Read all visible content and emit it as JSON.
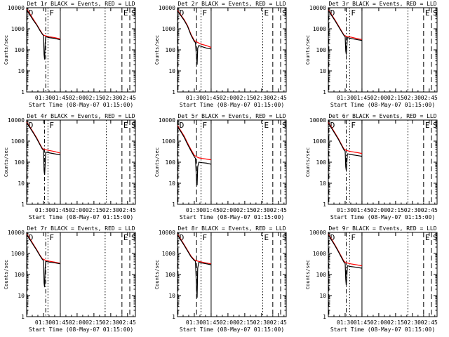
{
  "figure": {
    "x_axis_title": "Start Time (08-May-07 01:15:00)",
    "y_axis_title": "Counts/sec",
    "x_tick_labels": [
      "01:30",
      "01:45",
      "02:00",
      "02:15",
      "02:30",
      "02:45"
    ],
    "y_tick_labels": [
      "1",
      "10",
      "100",
      "1000",
      "10000"
    ]
  },
  "chart_data": [
    {
      "type": "line",
      "title": "Det 1r BLACK = Events, RED = LLD",
      "xlabel": "Start Time (08-May-07 01:15:00)",
      "ylabel": "Counts/sec",
      "x_unit": "minutes after 01:15:00",
      "xlim": [
        0,
        97
      ],
      "ylim": [
        1,
        10000
      ],
      "yscale": "log",
      "series": [
        {
          "name": "Events",
          "color": "#000000",
          "x": [
            0,
            3,
            6,
            9,
            12,
            14,
            15,
            15.5,
            16,
            16.5,
            17,
            20,
            25,
            30
          ],
          "y": [
            8000,
            4500,
            2500,
            1500,
            800,
            550,
            480,
            60,
            35,
            200,
            420,
            380,
            350,
            300
          ]
        },
        {
          "name": "LLD",
          "color": "#ff0000",
          "x": [
            0,
            3,
            6,
            9,
            12,
            14,
            15,
            16,
            17,
            20,
            25,
            30
          ],
          "y": [
            8500,
            5000,
            2800,
            1600,
            850,
            580,
            500,
            480,
            460,
            420,
            380,
            330
          ]
        }
      ],
      "markers": [
        {
          "x": 0.5,
          "label": "D",
          "style": "dashed"
        },
        {
          "x": 17,
          "label": "",
          "style": "dashdot"
        },
        {
          "x": 19,
          "label": "F",
          "style": "dotted"
        },
        {
          "x": 30,
          "label": "",
          "style": "solid"
        },
        {
          "x": 70,
          "label": "",
          "style": "dotted"
        },
        {
          "x": 85,
          "label": "E",
          "style": "dashed"
        },
        {
          "x": 92,
          "label": "S",
          "style": "dashed"
        }
      ]
    },
    {
      "type": "line",
      "title": "Det 2r BLACK = Events, RED = LLD",
      "xlabel": "Start Time (08-May-07 01:15:00)",
      "ylabel": "Counts/sec",
      "x_unit": "minutes after 01:15:00",
      "xlim": [
        0,
        97
      ],
      "ylim": [
        1,
        10000
      ],
      "yscale": "log",
      "series": [
        {
          "name": "Events",
          "color": "#000000",
          "x": [
            0,
            3,
            6,
            9,
            12,
            15,
            16,
            17,
            17.5,
            18,
            19,
            22,
            26,
            30
          ],
          "y": [
            7000,
            4200,
            2500,
            1300,
            500,
            250,
            220,
            40,
            20,
            120,
            160,
            140,
            120,
            110
          ]
        },
        {
          "name": "LLD",
          "color": "#ff0000",
          "x": [
            0,
            3,
            6,
            9,
            12,
            15,
            17,
            19,
            22,
            26,
            30
          ],
          "y": [
            7500,
            4500,
            2700,
            1400,
            550,
            280,
            240,
            210,
            180,
            160,
            130
          ]
        }
      ],
      "markers": [
        {
          "x": 0.5,
          "label": "D",
          "style": "dashed"
        },
        {
          "x": 17,
          "label": "",
          "style": "dashed"
        },
        {
          "x": 21,
          "label": "F",
          "style": "dotted"
        },
        {
          "x": 30,
          "label": "",
          "style": "solid"
        },
        {
          "x": 76,
          "label": "E",
          "style": "dotted"
        },
        {
          "x": 85,
          "label": "",
          "style": "dashed"
        },
        {
          "x": 92,
          "label": "S",
          "style": "dashed"
        }
      ]
    },
    {
      "type": "line",
      "title": "Det 3r BLACK = Events, RED = LLD",
      "xlabel": "Start Time (08-May-07 01:15:00)",
      "ylabel": "Counts/sec",
      "x_unit": "minutes after 01:15:00",
      "xlim": [
        0,
        97
      ],
      "ylim": [
        1,
        10000
      ],
      "yscale": "log",
      "series": [
        {
          "name": "Events",
          "color": "#000000",
          "x": [
            0,
            3,
            6,
            9,
            12,
            14,
            15,
            15.5,
            16,
            17,
            20,
            25,
            30
          ],
          "y": [
            7500,
            4200,
            2400,
            1300,
            700,
            480,
            420,
            90,
            60,
            380,
            350,
            310,
            280
          ]
        },
        {
          "name": "LLD",
          "color": "#ff0000",
          "x": [
            0,
            3,
            6,
            9,
            12,
            14,
            16,
            20,
            25,
            30
          ],
          "y": [
            8000,
            4600,
            2600,
            1400,
            750,
            500,
            440,
            400,
            350,
            310
          ]
        }
      ],
      "markers": [
        {
          "x": 0.5,
          "label": "D",
          "style": "dashed"
        },
        {
          "x": 16,
          "label": "",
          "style": "dashdot"
        },
        {
          "x": 19,
          "label": "F",
          "style": "dotted"
        },
        {
          "x": 30,
          "label": "",
          "style": "solid"
        },
        {
          "x": 71,
          "label": "",
          "style": "dotted"
        },
        {
          "x": 85,
          "label": "E",
          "style": "dashed"
        },
        {
          "x": 92,
          "label": "S",
          "style": "dashed"
        }
      ]
    },
    {
      "type": "line",
      "title": "Det 4r BLACK = Events, RED = LLD",
      "xlabel": "Start Time (08-May-07 01:15:00)",
      "ylabel": "Counts/sec",
      "x_unit": "minutes after 01:15:00",
      "xlim": [
        0,
        97
      ],
      "ylim": [
        1,
        10000
      ],
      "yscale": "log",
      "series": [
        {
          "name": "Events",
          "color": "#000000",
          "x": [
            0,
            3,
            6,
            9,
            12,
            14,
            15,
            15.5,
            16,
            17,
            20,
            25,
            30
          ],
          "y": [
            7500,
            4300,
            2400,
            1300,
            650,
            420,
            380,
            40,
            25,
            300,
            280,
            250,
            220
          ]
        },
        {
          "name": "LLD",
          "color": "#ff0000",
          "x": [
            0,
            3,
            6,
            9,
            12,
            14,
            16,
            20,
            25,
            30
          ],
          "y": [
            8000,
            4600,
            2600,
            1400,
            700,
            450,
            400,
            360,
            320,
            270
          ]
        }
      ],
      "markers": [
        {
          "x": 0.5,
          "label": "D",
          "style": "dashed"
        },
        {
          "x": 16,
          "label": "",
          "style": "dashdot"
        },
        {
          "x": 19,
          "label": "F",
          "style": "dotted"
        },
        {
          "x": 30,
          "label": "",
          "style": "solid"
        },
        {
          "x": 71,
          "label": "",
          "style": "dotted"
        },
        {
          "x": 85,
          "label": "E",
          "style": "dashed"
        },
        {
          "x": 92,
          "label": "S",
          "style": "dashed"
        }
      ]
    },
    {
      "type": "line",
      "title": "Det 5r BLACK = Events, RED = LLD",
      "xlabel": "Start Time (08-May-07 01:15:00)",
      "ylabel": "Counts/sec",
      "x_unit": "minutes after 01:15:00",
      "xlim": [
        0,
        97
      ],
      "ylim": [
        1,
        10000
      ],
      "yscale": "log",
      "series": [
        {
          "name": "Events",
          "color": "#000000",
          "x": [
            0,
            3,
            6,
            9,
            12,
            15,
            16,
            17,
            17.5,
            18,
            19,
            22,
            26,
            30
          ],
          "y": [
            5000,
            2800,
            1500,
            700,
            350,
            180,
            150,
            12,
            8,
            60,
            100,
            95,
            90,
            80
          ]
        },
        {
          "name": "LLD",
          "color": "#ff0000",
          "x": [
            0,
            3,
            6,
            9,
            12,
            15,
            17,
            19,
            22,
            26,
            30
          ],
          "y": [
            5500,
            3100,
            1700,
            800,
            400,
            210,
            180,
            160,
            150,
            140,
            130
          ]
        }
      ],
      "markers": [
        {
          "x": 0.5,
          "label": "D",
          "style": "dashed"
        },
        {
          "x": 17,
          "label": "",
          "style": "dashed"
        },
        {
          "x": 21,
          "label": "F",
          "style": "dotted"
        },
        {
          "x": 30,
          "label": "",
          "style": "solid"
        },
        {
          "x": 76,
          "label": "E",
          "style": "dotted"
        },
        {
          "x": 85,
          "label": "",
          "style": "dashed"
        },
        {
          "x": 92,
          "label": "S",
          "style": "dashed"
        }
      ]
    },
    {
      "type": "line",
      "title": "Det 6r BLACK = Events, RED = LLD",
      "xlabel": "Start Time (08-May-07 01:15:00)",
      "ylabel": "Counts/sec",
      "x_unit": "minutes after 01:15:00",
      "xlim": [
        0,
        97
      ],
      "ylim": [
        1,
        10000
      ],
      "yscale": "log",
      "series": [
        {
          "name": "Events",
          "color": "#000000",
          "x": [
            0,
            3,
            6,
            9,
            12,
            14,
            15,
            15.5,
            16,
            17,
            20,
            25,
            30
          ],
          "y": [
            7000,
            4000,
            2200,
            1200,
            600,
            380,
            330,
            60,
            40,
            250,
            230,
            210,
            190
          ]
        },
        {
          "name": "LLD",
          "color": "#ff0000",
          "x": [
            0,
            3,
            6,
            9,
            12,
            14,
            16,
            20,
            25,
            30
          ],
          "y": [
            7600,
            4400,
            2400,
            1300,
            650,
            420,
            360,
            320,
            290,
            260
          ]
        }
      ],
      "markers": [
        {
          "x": 0.5,
          "label": "D",
          "style": "dashed"
        },
        {
          "x": 16,
          "label": "",
          "style": "dashdot"
        },
        {
          "x": 19,
          "label": "F",
          "style": "dotted"
        },
        {
          "x": 30,
          "label": "",
          "style": "solid"
        },
        {
          "x": 71,
          "label": "",
          "style": "dotted"
        },
        {
          "x": 85,
          "label": "E",
          "style": "dashed"
        },
        {
          "x": 92,
          "label": "S",
          "style": "dashed"
        }
      ]
    },
    {
      "type": "line",
      "title": "Det 7r BLACK = Events, RED = LLD",
      "xlabel": "Start Time (08-May-07 01:15:00)",
      "ylabel": "Counts/sec",
      "x_unit": "minutes after 01:15:00",
      "xlim": [
        0,
        97
      ],
      "ylim": [
        1,
        10000
      ],
      "yscale": "log",
      "series": [
        {
          "name": "Events",
          "color": "#000000",
          "x": [
            0,
            3,
            6,
            9,
            12,
            14,
            15,
            15.5,
            16,
            16.5,
            17,
            20,
            25,
            30
          ],
          "y": [
            8000,
            4500,
            2500,
            1400,
            750,
            520,
            460,
            40,
            25,
            200,
            420,
            390,
            360,
            320
          ]
        },
        {
          "name": "LLD",
          "color": "#ff0000",
          "x": [
            0,
            3,
            6,
            9,
            12,
            14,
            16,
            17,
            20,
            25,
            30
          ],
          "y": [
            8500,
            4900,
            2700,
            1500,
            800,
            560,
            500,
            470,
            430,
            390,
            340
          ]
        }
      ],
      "markers": [
        {
          "x": 0.5,
          "label": "D",
          "style": "dashed"
        },
        {
          "x": 17,
          "label": "",
          "style": "dashdot"
        },
        {
          "x": 19,
          "label": "F",
          "style": "dotted"
        },
        {
          "x": 30,
          "label": "",
          "style": "solid"
        },
        {
          "x": 70,
          "label": "",
          "style": "dotted"
        },
        {
          "x": 85,
          "label": "E",
          "style": "dashed"
        },
        {
          "x": 92,
          "label": "S",
          "style": "dashed"
        }
      ]
    },
    {
      "type": "line",
      "title": "Det 8r BLACK = Events, RED = LLD",
      "xlabel": "Start Time (08-May-07 01:15:00)",
      "ylabel": "Counts/sec",
      "x_unit": "minutes after 01:15:00",
      "xlim": [
        0,
        97
      ],
      "ylim": [
        1,
        10000
      ],
      "yscale": "log",
      "series": [
        {
          "name": "Events",
          "color": "#000000",
          "x": [
            0,
            3,
            6,
            9,
            12,
            15,
            16,
            17,
            17.5,
            18,
            19,
            22,
            26,
            30
          ],
          "y": [
            7500,
            4300,
            2400,
            1300,
            700,
            460,
            420,
            20,
            8,
            200,
            380,
            350,
            320,
            290
          ]
        },
        {
          "name": "LLD",
          "color": "#ff0000",
          "x": [
            0,
            3,
            6,
            9,
            12,
            15,
            17,
            19,
            22,
            26,
            30
          ],
          "y": [
            8000,
            4700,
            2600,
            1400,
            760,
            500,
            450,
            420,
            390,
            350,
            320
          ]
        }
      ],
      "markers": [
        {
          "x": 0.5,
          "label": "D",
          "style": "dashed"
        },
        {
          "x": 17,
          "label": "",
          "style": "dashed"
        },
        {
          "x": 21,
          "label": "F",
          "style": "dotted"
        },
        {
          "x": 30,
          "label": "",
          "style": "solid"
        },
        {
          "x": 76,
          "label": "E",
          "style": "dotted"
        },
        {
          "x": 85,
          "label": "",
          "style": "dashed"
        },
        {
          "x": 92,
          "label": "S",
          "style": "dashed"
        }
      ]
    },
    {
      "type": "line",
      "title": "Det 9r BLACK = Events, RED = LLD",
      "xlabel": "Start Time (08-May-07 01:15:00)",
      "ylabel": "Counts/sec",
      "x_unit": "minutes after 01:15:00",
      "xlim": [
        0,
        97
      ],
      "ylim": [
        1,
        10000
      ],
      "yscale": "log",
      "series": [
        {
          "name": "Events",
          "color": "#000000",
          "x": [
            0,
            3,
            6,
            9,
            12,
            14,
            15,
            15.5,
            16,
            17,
            20,
            25,
            30
          ],
          "y": [
            7500,
            4200,
            2300,
            1200,
            600,
            380,
            330,
            60,
            30,
            260,
            240,
            220,
            200
          ]
        },
        {
          "name": "LLD",
          "color": "#ff0000",
          "x": [
            0,
            3,
            6,
            9,
            12,
            14,
            16,
            20,
            25,
            30
          ],
          "y": [
            8000,
            4600,
            2500,
            1300,
            660,
            420,
            360,
            320,
            290,
            260
          ]
        }
      ],
      "markers": [
        {
          "x": 0.5,
          "label": "D",
          "style": "dashed"
        },
        {
          "x": 16,
          "label": "",
          "style": "dashdot"
        },
        {
          "x": 19,
          "label": "F",
          "style": "dotted"
        },
        {
          "x": 30,
          "label": "",
          "style": "solid"
        },
        {
          "x": 71,
          "label": "",
          "style": "dotted"
        },
        {
          "x": 85,
          "label": "E",
          "style": "dashed"
        },
        {
          "x": 92,
          "label": "S",
          "style": "dashed"
        }
      ]
    }
  ]
}
